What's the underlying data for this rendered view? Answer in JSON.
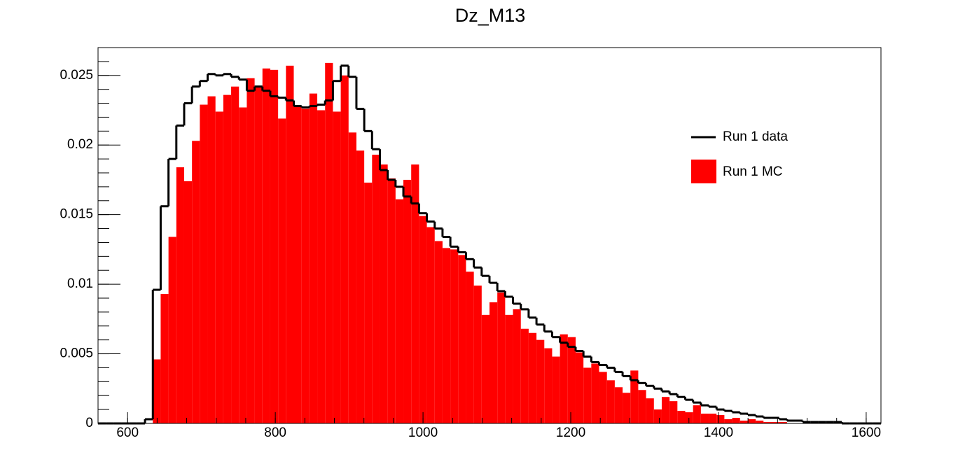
{
  "chart_data": {
    "type": "histogram",
    "title": "Dz_M13",
    "bins": [
      560,
      570.6,
      581.2,
      591.8,
      602.4,
      613,
      623.6,
      634.2,
      644.8,
      655.4,
      666,
      676.6,
      687.2,
      697.8,
      708.4,
      719,
      729.6,
      740.2,
      750.8,
      761.4,
      772,
      782.6,
      793.2,
      803.8,
      814.4,
      825,
      835.6,
      846.2,
      856.8,
      867.4,
      878,
      888.6,
      899.2,
      909.8,
      920.4,
      931,
      941.6,
      952.2,
      962.8,
      973.4,
      984,
      994.6,
      1005.2,
      1015.8,
      1026.4,
      1037,
      1047.6,
      1058.2,
      1068.8,
      1079.4,
      1090,
      1100.6,
      1111.2,
      1121.8,
      1132.4,
      1143,
      1153.6,
      1164.2,
      1174.8,
      1185.4,
      1196,
      1206.6,
      1217.2,
      1227.8,
      1238.4,
      1249,
      1259.6,
      1270.2,
      1280.8,
      1291.4,
      1302,
      1312.6,
      1323.2,
      1333.8,
      1344.4,
      1355,
      1365.6,
      1376.2,
      1386.8,
      1397.4,
      1408,
      1418.6,
      1429.2,
      1439.8,
      1450.4,
      1461,
      1471.6,
      1482.2,
      1492.8,
      1503.4,
      1514,
      1524.6,
      1535.2,
      1545.8,
      1556.4,
      1567,
      1577.6,
      1588.2,
      1598.8,
      1609.4,
      1620
    ],
    "series": [
      {
        "name": "Run 1 MC",
        "color": "#ff0000",
        "style": "fill",
        "values": [
          0,
          0,
          0,
          0,
          0,
          0,
          0,
          0.0046,
          0.0093,
          0.0134,
          0.0184,
          0.0174,
          0.0203,
          0.0229,
          0.0235,
          0.0224,
          0.0236,
          0.0242,
          0.0227,
          0.0248,
          0.0242,
          0.0255,
          0.0254,
          0.0219,
          0.0257,
          0.0228,
          0.0226,
          0.0237,
          0.0225,
          0.0259,
          0.0224,
          0.025,
          0.0209,
          0.0196,
          0.0173,
          0.0193,
          0.0186,
          0.0176,
          0.0161,
          0.0175,
          0.0186,
          0.0149,
          0.0141,
          0.0131,
          0.0126,
          0.0125,
          0.0121,
          0.0109,
          0.0099,
          0.0078,
          0.0087,
          0.0094,
          0.0078,
          0.0082,
          0.0068,
          0.0065,
          0.006,
          0.0054,
          0.0048,
          0.0064,
          0.0062,
          0.0051,
          0.004,
          0.0043,
          0.0037,
          0.0031,
          0.0026,
          0.0022,
          0.0038,
          0.0024,
          0.0018,
          0.001,
          0.0019,
          0.0016,
          0.0009,
          0.0008,
          0.0013,
          0.0007,
          0.0007,
          0.0006,
          0.0003,
          0.0004,
          0.0002,
          0.0003,
          0.0002,
          0.0001,
          0.0001,
          0.0001,
          0,
          0,
          0,
          0,
          0,
          0,
          0,
          0,
          0,
          0,
          0,
          0
        ]
      },
      {
        "name": "Run 1 data",
        "color": "#000000",
        "style": "step",
        "values": [
          0,
          0,
          0,
          0,
          0,
          0,
          0.0003,
          0.0096,
          0.0156,
          0.019,
          0.0214,
          0.023,
          0.0242,
          0.0246,
          0.0251,
          0.025,
          0.0251,
          0.0249,
          0.0247,
          0.0239,
          0.0242,
          0.0239,
          0.0235,
          0.0234,
          0.0232,
          0.0228,
          0.0227,
          0.0228,
          0.0229,
          0.0232,
          0.0246,
          0.0257,
          0.0249,
          0.0226,
          0.021,
          0.0197,
          0.0182,
          0.0175,
          0.017,
          0.0163,
          0.0158,
          0.0151,
          0.0145,
          0.014,
          0.0134,
          0.0127,
          0.0123,
          0.0118,
          0.0112,
          0.0106,
          0.0101,
          0.0095,
          0.0091,
          0.0086,
          0.0082,
          0.0076,
          0.0071,
          0.0066,
          0.0062,
          0.0058,
          0.0055,
          0.0052,
          0.0048,
          0.0044,
          0.0042,
          0.004,
          0.0037,
          0.0034,
          0.0031,
          0.0029,
          0.0027,
          0.0025,
          0.0023,
          0.0021,
          0.0019,
          0.0017,
          0.0015,
          0.0013,
          0.0012,
          0.001,
          0.0009,
          0.0008,
          0.0007,
          0.0006,
          0.0005,
          0.0004,
          0.0004,
          0.0003,
          0.0002,
          0.0002,
          0.0001,
          0.0001,
          0.0001,
          0.0001,
          0.0001,
          0,
          0,
          0,
          0,
          0
        ]
      }
    ],
    "xlim": [
      560,
      1620
    ],
    "xticks": [
      600,
      800,
      1000,
      1200,
      1400,
      1600
    ],
    "ylim": [
      0,
      0.027
    ],
    "yticks": [
      0,
      0.005,
      0.01,
      0.015,
      0.02,
      0.025
    ],
    "legend": "upper right"
  }
}
